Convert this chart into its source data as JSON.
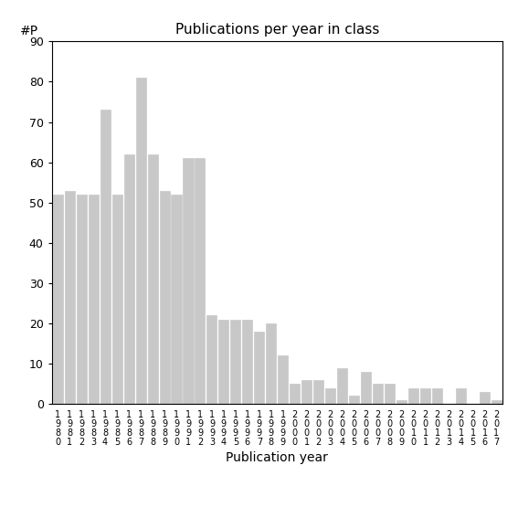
{
  "title": "Publications per year in class",
  "xlabel": "Publication year",
  "ylabel": "#P",
  "bar_color": "#c8c8c8",
  "edge_color": "#c8c8c8",
  "background_color": "#ffffff",
  "ylim": [
    0,
    90
  ],
  "yticks": [
    0,
    10,
    20,
    30,
    40,
    50,
    60,
    70,
    80,
    90
  ],
  "all_years": [
    "1980",
    "1981",
    "1982",
    "1983",
    "1984",
    "1985",
    "1986",
    "1987",
    "1988",
    "1989",
    "1990",
    "1991",
    "1992",
    "1993",
    "1994",
    "1995",
    "1996",
    "1997",
    "1998",
    "1999",
    "2000",
    "2001",
    "2002",
    "2003",
    "2004",
    "2005",
    "2006",
    "2007",
    "2008",
    "2009",
    "2010",
    "2011",
    "2012",
    "2013",
    "2014",
    "2015",
    "2016",
    "2017"
  ],
  "all_values": [
    52,
    53,
    52,
    52,
    73,
    52,
    62,
    81,
    62,
    53,
    52,
    61,
    61,
    22,
    21,
    21,
    21,
    18,
    20,
    12,
    5,
    6,
    6,
    4,
    9,
    2,
    8,
    5,
    5,
    1,
    4,
    4,
    4,
    0,
    4,
    0,
    3,
    1
  ]
}
